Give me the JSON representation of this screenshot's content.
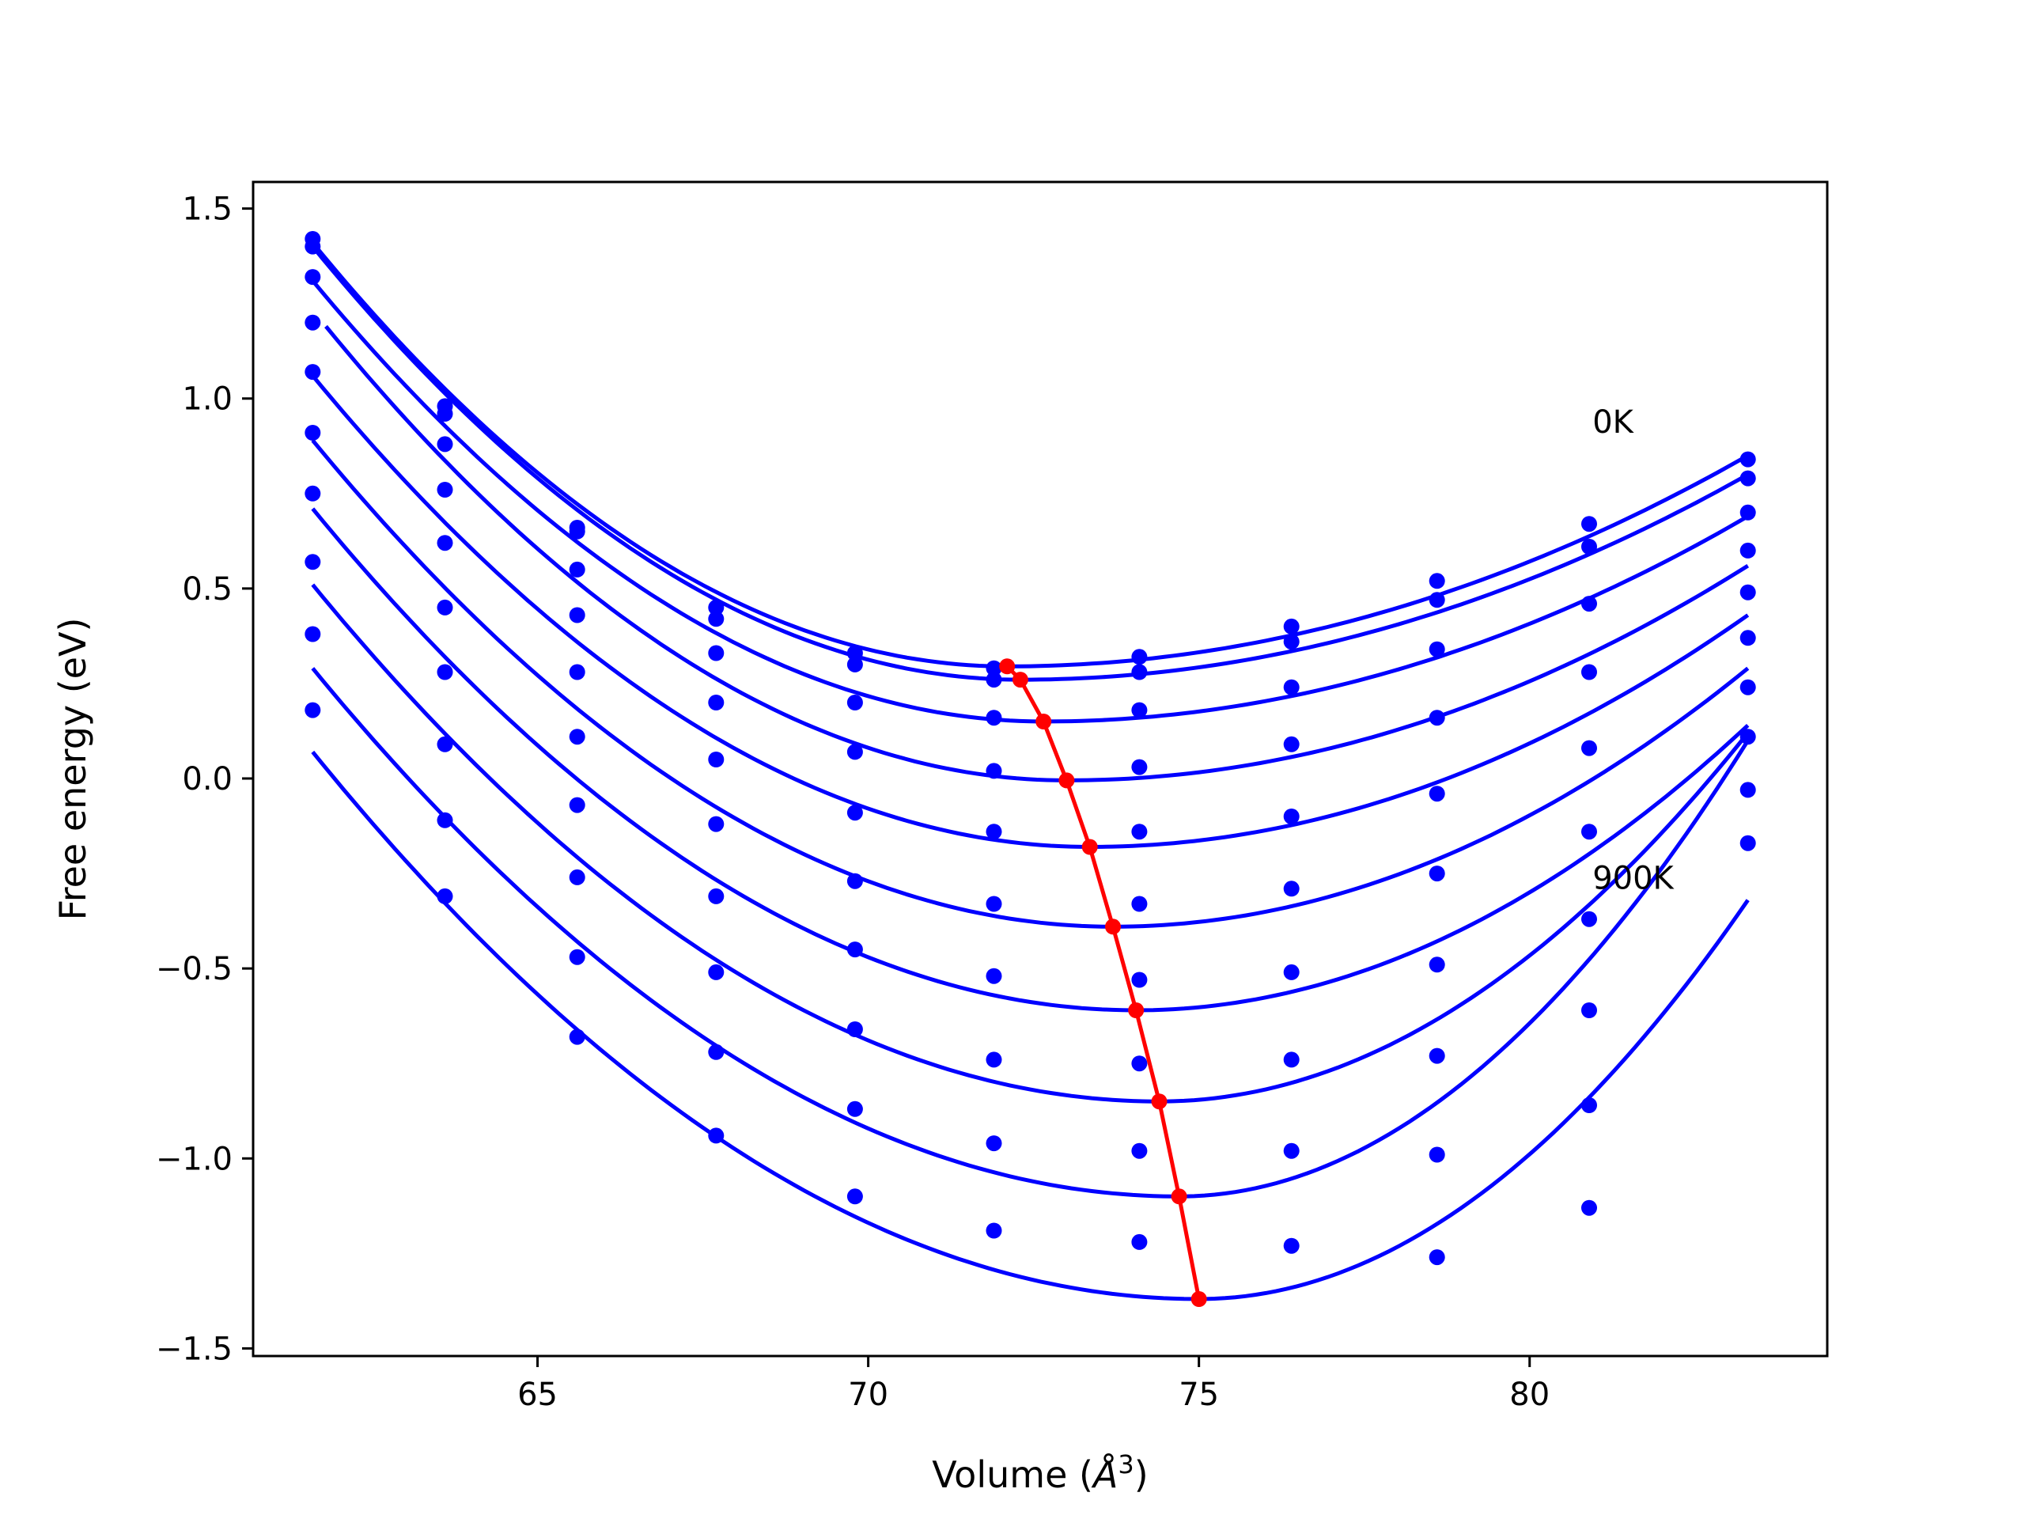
{
  "chart_data": {
    "type": "line",
    "xlabel_prefix": "Volume (",
    "xlabel_symbol": "Å",
    "xlabel_exponent": "3",
    "xlabel_suffix": ")",
    "ylabel": "Free energy (eV)",
    "xlim": [
      60.7,
      84.5
    ],
    "ylim": [
      -1.52,
      1.57
    ],
    "xticks": [
      65,
      70,
      75,
      80
    ],
    "xtick_labels": [
      "65",
      "70",
      "75",
      "80"
    ],
    "yticks": [
      -1.5,
      -1.0,
      -0.5,
      0.0,
      0.5,
      1.0,
      1.5
    ],
    "ytick_labels": [
      "−1.5",
      "−1.0",
      "−0.5",
      "0.0",
      "0.5",
      "1.0",
      "1.5"
    ],
    "grid": false,
    "annotations": [
      {
        "text": "0K",
        "x": 80.95,
        "y": 0.91
      },
      {
        "text": "900K",
        "x": 80.95,
        "y": -0.29
      }
    ],
    "volumes": [
      61.6,
      63.6,
      65.6,
      67.7,
      69.8,
      71.9,
      74.1,
      76.4,
      78.6,
      80.9,
      83.3
    ],
    "series": [
      {
        "color": "#0000ff",
        "fit_vmin": 61.6,
        "fit_vmax": 83.3,
        "min_v": 72.1,
        "min_f": 0.295,
        "left_f": 1.41,
        "right_f": 0.85,
        "points": [
          1.42,
          0.98,
          0.66,
          0.45,
          0.33,
          0.29,
          0.32,
          0.4,
          0.52,
          0.67,
          0.84
        ]
      },
      {
        "color": "#0000ff",
        "fit_vmin": 61.6,
        "fit_vmax": 83.3,
        "min_v": 72.3,
        "min_f": 0.26,
        "left_f": 1.4,
        "right_f": 0.8,
        "points": [
          1.4,
          0.96,
          0.65,
          0.42,
          0.3,
          0.26,
          0.28,
          0.36,
          0.47,
          0.61,
          0.79
        ]
      },
      {
        "color": "#0000ff",
        "fit_vmin": 61.6,
        "fit_vmax": 83.3,
        "min_v": 72.65,
        "min_f": 0.15,
        "left_f": 1.31,
        "right_f": 0.69,
        "points": [
          1.32,
          0.88,
          0.55,
          0.33,
          0.2,
          0.16,
          0.18,
          0.24,
          0.34,
          0.46,
          0.7
        ]
      },
      {
        "color": "#0000ff",
        "fit_vmin": 61.8,
        "fit_vmax": 83.3,
        "min_v": 73.0,
        "min_f": -0.005,
        "left_f": 1.19,
        "right_f": 0.56,
        "points": [
          1.2,
          0.76,
          0.43,
          0.2,
          0.07,
          0.02,
          0.03,
          0.09,
          0.16,
          0.28,
          0.6
        ]
      },
      {
        "color": "#0000ff",
        "fit_vmin": 61.6,
        "fit_vmax": 83.3,
        "min_v": 73.35,
        "min_f": -0.18,
        "left_f": 1.06,
        "right_f": 0.43,
        "points": [
          1.07,
          0.62,
          0.28,
          0.05,
          -0.09,
          -0.14,
          -0.14,
          -0.1,
          -0.04,
          0.08,
          0.49
        ]
      },
      {
        "color": "#0000ff",
        "fit_vmin": 61.6,
        "fit_vmax": 83.3,
        "min_v": 73.7,
        "min_f": -0.39,
        "left_f": 0.89,
        "right_f": 0.29,
        "points": [
          0.91,
          0.45,
          0.11,
          -0.12,
          -0.27,
          -0.33,
          -0.33,
          -0.29,
          -0.25,
          -0.14,
          0.37
        ]
      },
      {
        "color": "#0000ff",
        "fit_vmin": 61.6,
        "fit_vmax": 83.3,
        "min_v": 74.05,
        "min_f": -0.61,
        "left_f": 0.71,
        "right_f": 0.14,
        "points": [
          0.75,
          0.28,
          -0.07,
          -0.31,
          -0.45,
          -0.52,
          -0.53,
          -0.51,
          -0.49,
          -0.37,
          0.24
        ]
      },
      {
        "color": "#0000ff",
        "fit_vmin": 61.6,
        "fit_vmax": 83.3,
        "min_v": 74.4,
        "min_f": -0.85,
        "left_f": 0.51,
        "right_f": 0.12,
        "points": [
          0.57,
          0.09,
          -0.26,
          -0.51,
          -0.66,
          -0.74,
          -0.75,
          -0.74,
          -0.73,
          -0.61,
          0.11
        ]
      },
      {
        "color": "#0000ff",
        "fit_vmin": 61.6,
        "fit_vmax": 83.3,
        "min_v": 74.7,
        "min_f": -1.1,
        "left_f": 0.29,
        "right_f": 0.1,
        "points": [
          0.38,
          -0.11,
          -0.47,
          -0.72,
          -0.87,
          -0.96,
          -0.98,
          -0.98,
          -0.99,
          -0.86,
          -0.03
        ]
      },
      {
        "color": "#0000ff",
        "fit_vmin": 61.6,
        "fit_vmax": 83.3,
        "min_v": 75.0,
        "min_f": -1.37,
        "left_f": 0.07,
        "right_f": -0.32,
        "points": [
          0.18,
          -0.31,
          -0.68,
          -0.94,
          -1.1,
          -1.19,
          -1.22,
          -1.23,
          -1.26,
          -1.13,
          -0.17
        ]
      }
    ],
    "minimum_path": {
      "color": "#ff0000",
      "x": [
        72.1,
        72.3,
        72.65,
        73.0,
        73.35,
        73.7,
        74.05,
        74.4,
        74.7,
        75.0
      ],
      "y": [
        0.295,
        0.26,
        0.15,
        -0.005,
        -0.18,
        -0.39,
        -0.61,
        -0.85,
        -1.1,
        -1.37
      ]
    }
  }
}
